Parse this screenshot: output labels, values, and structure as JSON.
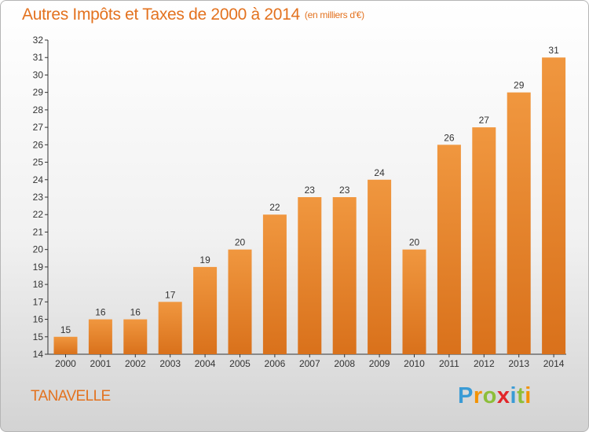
{
  "chart_data": {
    "type": "bar",
    "title": "Autres Impôts et Taxes de 2000 à 2014",
    "subtitle": "(en milliers d'€)",
    "categories": [
      "2000",
      "2001",
      "2002",
      "2003",
      "2004",
      "2005",
      "2006",
      "2007",
      "2008",
      "2009",
      "2010",
      "2011",
      "2012",
      "2013",
      "2014"
    ],
    "values": [
      15,
      16,
      16,
      17,
      19,
      20,
      22,
      23,
      23,
      24,
      20,
      26,
      27,
      29,
      31
    ],
    "ylim": [
      14,
      32
    ],
    "yticks": [
      14,
      15,
      16,
      17,
      18,
      19,
      20,
      21,
      22,
      23,
      24,
      25,
      26,
      27,
      28,
      29,
      30,
      31,
      32
    ],
    "grid": false,
    "bar_color": "#f0973f",
    "bar_color_dark": "#d9711b",
    "text_color": "#e3721f"
  },
  "commune": "TANAVELLE",
  "logo": {
    "letters": [
      "P",
      "r",
      "o",
      "x",
      "i",
      "t",
      "i"
    ],
    "colors": [
      "#3a9bd5",
      "#f39200",
      "#8dbe3a",
      "#e2262a",
      "#3a9bd5",
      "#8dbe3a",
      "#f39200"
    ]
  }
}
